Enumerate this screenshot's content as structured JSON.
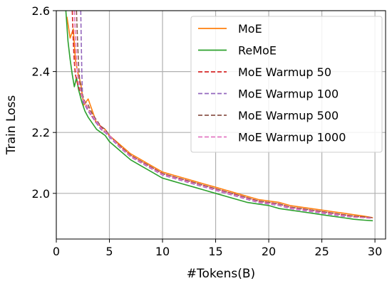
{
  "chart_data": {
    "type": "line",
    "title": "",
    "xlabel": "#Tokens(B)",
    "ylabel": "Train Loss",
    "xlim": [
      0,
      31
    ],
    "ylim": [
      1.85,
      2.6
    ],
    "xticks": [
      0,
      5,
      10,
      15,
      20,
      25,
      30
    ],
    "xtick_labels": [
      "0",
      "5",
      "10",
      "15",
      "20",
      "25",
      "30"
    ],
    "yticks": [
      2.0,
      2.2,
      2.4,
      2.6
    ],
    "ytick_labels": [
      "2.0",
      "2.2",
      "2.4",
      "2.6"
    ],
    "grid": true,
    "legend_position": "top-right",
    "series": [
      {
        "name": "MoE",
        "color": "#ff7f0e",
        "dash": "solid",
        "x": [
          1.0,
          1.3,
          1.6,
          1.8,
          2.0,
          2.3,
          2.6,
          3.0,
          3.4,
          3.8,
          4.2,
          4.6,
          5.0,
          6,
          7,
          8,
          9,
          10,
          11,
          12,
          13,
          14,
          15,
          16,
          17,
          18,
          19,
          20,
          21,
          22,
          23,
          24,
          25,
          26,
          27,
          28,
          29,
          29.8
        ],
        "y": [
          2.58,
          2.51,
          2.54,
          2.44,
          2.4,
          2.36,
          2.29,
          2.31,
          2.27,
          2.23,
          2.22,
          2.21,
          2.19,
          2.16,
          2.13,
          2.11,
          2.09,
          2.07,
          2.06,
          2.05,
          2.04,
          2.03,
          2.02,
          2.01,
          2.0,
          1.99,
          1.98,
          1.975,
          1.97,
          1.96,
          1.955,
          1.95,
          1.945,
          1.94,
          1.935,
          1.93,
          1.925,
          1.92
        ]
      },
      {
        "name": "ReMoE",
        "color": "#2ca02c",
        "dash": "solid",
        "x": [
          0.9,
          1.1,
          1.3,
          1.5,
          1.7,
          1.9,
          2.1,
          2.4,
          2.7,
          3.0,
          3.4,
          3.8,
          4.2,
          4.6,
          5.0,
          6,
          7,
          8,
          9,
          10,
          11,
          12,
          13,
          14,
          15,
          16,
          17,
          18,
          19,
          20,
          21,
          22,
          23,
          24,
          25,
          26,
          27,
          28,
          29,
          29.8
        ],
        "y": [
          2.6,
          2.5,
          2.44,
          2.39,
          2.35,
          2.38,
          2.34,
          2.3,
          2.27,
          2.25,
          2.23,
          2.21,
          2.2,
          2.19,
          2.17,
          2.14,
          2.11,
          2.09,
          2.07,
          2.05,
          2.04,
          2.03,
          2.02,
          2.01,
          2.0,
          1.99,
          1.98,
          1.97,
          1.965,
          1.96,
          1.95,
          1.945,
          1.94,
          1.935,
          1.93,
          1.925,
          1.92,
          1.915,
          1.912,
          1.91
        ]
      },
      {
        "name": "MoE Warmup 50",
        "color": "#d62728",
        "dash": "dashed",
        "x": [
          1.5,
          1.6,
          1.7,
          1.8,
          2.0,
          2.3,
          2.6,
          3.0,
          3.4,
          3.8,
          4.2,
          4.6,
          5.0,
          6,
          7,
          8,
          9,
          10,
          11,
          12,
          13,
          14,
          15,
          16,
          17,
          18,
          19,
          20,
          21,
          22,
          23,
          24,
          25,
          26,
          27,
          28,
          29,
          29.8
        ],
        "y": [
          2.6,
          2.5,
          2.43,
          2.39,
          2.36,
          2.33,
          2.3,
          2.28,
          2.25,
          2.23,
          2.22,
          2.2,
          2.19,
          2.155,
          2.125,
          2.105,
          2.085,
          2.065,
          2.055,
          2.045,
          2.035,
          2.025,
          2.015,
          2.005,
          1.995,
          1.985,
          1.975,
          1.97,
          1.965,
          1.955,
          1.95,
          1.945,
          1.94,
          1.935,
          1.93,
          1.925,
          1.922,
          1.92
        ]
      },
      {
        "name": "MoE Warmup 100",
        "color": "#9467bd",
        "dash": "dashed",
        "x": [
          2.3,
          2.35,
          2.4,
          2.45,
          2.5,
          2.7,
          3.0,
          3.4,
          3.8,
          4.2,
          4.6,
          5.0,
          6,
          7,
          8,
          9,
          10,
          11,
          12,
          13,
          14,
          15,
          16,
          17,
          18,
          19,
          20,
          21,
          22,
          23,
          24,
          25,
          26,
          27,
          28,
          29,
          29.8
        ],
        "y": [
          2.6,
          2.5,
          2.4,
          2.34,
          2.3,
          2.29,
          2.27,
          2.25,
          2.23,
          2.21,
          2.2,
          2.185,
          2.15,
          2.12,
          2.1,
          2.08,
          2.06,
          2.05,
          2.04,
          2.03,
          2.02,
          2.01,
          2.0,
          1.99,
          1.98,
          1.97,
          1.965,
          1.96,
          1.95,
          1.945,
          1.94,
          1.935,
          1.93,
          1.925,
          1.922,
          1.92,
          1.918
        ]
      },
      {
        "name": "MoE Warmup 500",
        "color": "#8c564b",
        "dash": "dashed",
        "x": [
          1.9,
          2.0,
          2.1,
          2.2,
          2.4,
          2.7,
          3.0,
          3.4,
          3.8,
          4.2,
          4.6,
          5.0,
          6,
          7,
          8,
          9,
          10,
          11,
          12,
          13,
          14,
          15,
          16,
          17,
          18,
          19,
          20,
          21,
          22,
          23,
          24,
          25,
          26,
          27,
          28,
          29,
          29.8
        ],
        "y": [
          2.6,
          2.5,
          2.42,
          2.37,
          2.33,
          2.3,
          2.29,
          2.26,
          2.24,
          2.22,
          2.21,
          2.19,
          2.155,
          2.125,
          2.105,
          2.085,
          2.065,
          2.055,
          2.045,
          2.035,
          2.025,
          2.015,
          2.005,
          1.995,
          1.985,
          1.975,
          1.97,
          1.965,
          1.955,
          1.95,
          1.945,
          1.94,
          1.935,
          1.93,
          1.925,
          1.922,
          1.92
        ]
      },
      {
        "name": "MoE Warmup 1000",
        "color": "#e377c2",
        "dash": "dashed",
        "x": [
          1.7,
          1.8,
          1.9,
          2.0,
          2.2,
          2.5,
          2.8,
          3.1,
          3.5,
          3.9,
          4.3,
          4.7,
          5.0,
          6,
          7,
          8,
          9,
          10,
          11,
          12,
          13,
          14,
          15,
          16,
          17,
          18,
          19,
          20,
          21,
          22,
          23,
          24,
          25,
          26,
          27,
          28,
          29,
          29.8
        ],
        "y": [
          2.6,
          2.52,
          2.44,
          2.39,
          2.35,
          2.31,
          2.29,
          2.27,
          2.25,
          2.23,
          2.21,
          2.2,
          2.19,
          2.152,
          2.122,
          2.102,
          2.082,
          2.062,
          2.052,
          2.042,
          2.032,
          2.022,
          2.012,
          2.002,
          1.992,
          1.982,
          1.972,
          1.967,
          1.962,
          1.952,
          1.947,
          1.942,
          1.937,
          1.932,
          1.927,
          1.922,
          1.92,
          1.918
        ]
      }
    ]
  }
}
